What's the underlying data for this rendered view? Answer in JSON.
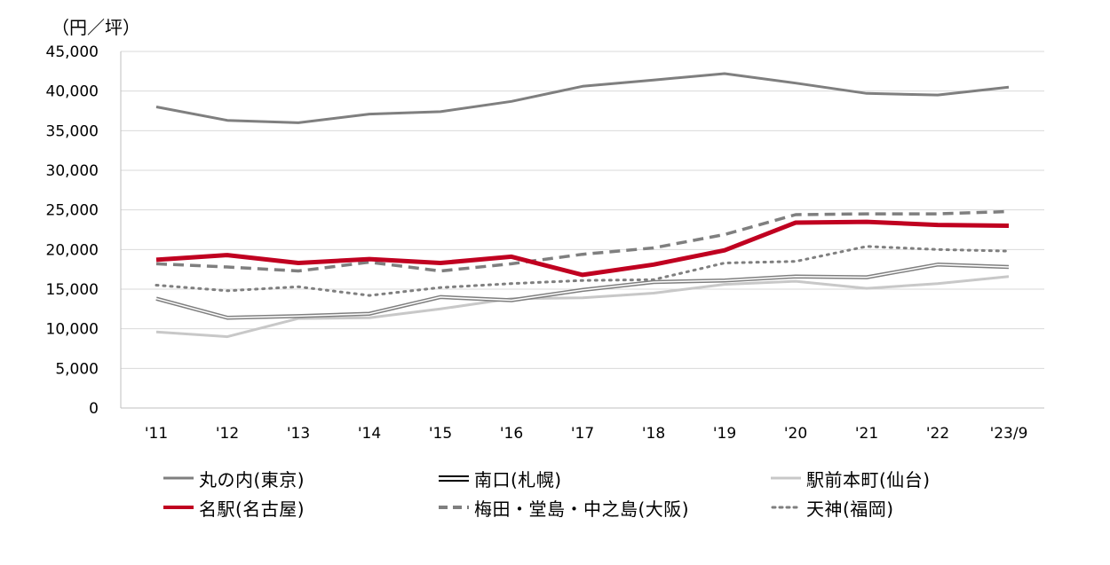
{
  "chart_data": {
    "type": "line",
    "unit_label": "（円／坪）",
    "categories": [
      "'11",
      "'12",
      "'13",
      "'14",
      "'15",
      "'16",
      "'17",
      "'18",
      "'19",
      "'20",
      "'21",
      "'22",
      "'23/9"
    ],
    "y_ticks": [
      "0",
      "5,000",
      "10,000",
      "15,000",
      "20,000",
      "25,000",
      "30,000",
      "35,000",
      "40,000",
      "45,000"
    ],
    "ylim": [
      0,
      45000
    ],
    "grid": true,
    "legend_position": "bottom",
    "series": [
      {
        "name": "丸の内(東京)",
        "color": "#7f7f7f",
        "style": "solid",
        "values": [
          38000,
          36300,
          36000,
          37100,
          37400,
          38700,
          40600,
          41400,
          42200,
          41000,
          39700,
          39500,
          40500
        ]
      },
      {
        "name": "南口(札幌)",
        "color": "#7f7f7f",
        "style": "double",
        "values": [
          13800,
          11400,
          11600,
          11900,
          14000,
          13600,
          14900,
          15900,
          16100,
          16600,
          16500,
          18100,
          17800
        ]
      },
      {
        "name": "駅前本町(仙台)",
        "color": "#c8c8c8",
        "style": "solid",
        "values": [
          9600,
          9000,
          11300,
          11400,
          12500,
          13800,
          13900,
          14500,
          15600,
          16000,
          15100,
          15700,
          16600
        ]
      },
      {
        "name": "名駅(名古屋)",
        "color": "#c00020",
        "style": "bold",
        "values": [
          18700,
          19300,
          18300,
          18800,
          18300,
          19100,
          16800,
          18100,
          19900,
          23400,
          23500,
          23100,
          23000
        ]
      },
      {
        "name": "梅田・堂島・中之島(大阪)",
        "color": "#7f7f7f",
        "style": "dashed",
        "values": [
          18200,
          17800,
          17300,
          18400,
          17300,
          18200,
          19400,
          20200,
          21900,
          24400,
          24500,
          24500,
          24800
        ]
      },
      {
        "name": "天神(福岡)",
        "color": "#7f7f7f",
        "style": "dotted",
        "values": [
          15500,
          14800,
          15300,
          14200,
          15200,
          15700,
          16100,
          16200,
          18300,
          18500,
          20400,
          20000,
          19800
        ]
      }
    ]
  }
}
